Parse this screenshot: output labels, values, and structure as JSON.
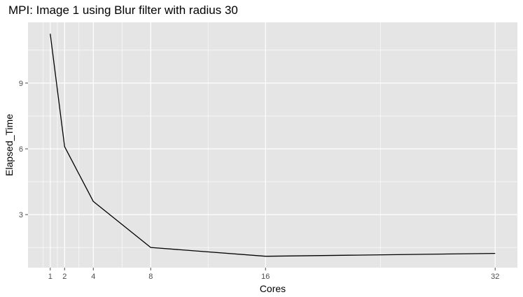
{
  "chart_data": {
    "type": "line",
    "title": "MPI: Image 1 using Blur filter with radius 30",
    "xlabel": "Cores",
    "ylabel": "Elapsed_Time",
    "x": [
      1,
      2,
      4,
      8,
      16,
      32
    ],
    "series": [
      {
        "values": [
          11.25,
          6.1,
          3.6,
          1.5,
          1.1,
          1.23
        ]
      }
    ],
    "x_ticks": [
      "1",
      "2",
      "4",
      "8",
      "16",
      "32"
    ],
    "y_ticks": [
      "3",
      "6",
      "9"
    ],
    "xlim": [
      -0.55,
      33.55
    ],
    "ylim": [
      0.58,
      11.77
    ],
    "grid": true,
    "legend": "none",
    "colors": {
      "panel": "#e5e5e5",
      "grid": "#ffffff",
      "line": "#000000",
      "tick": "#4d4d4d"
    }
  }
}
